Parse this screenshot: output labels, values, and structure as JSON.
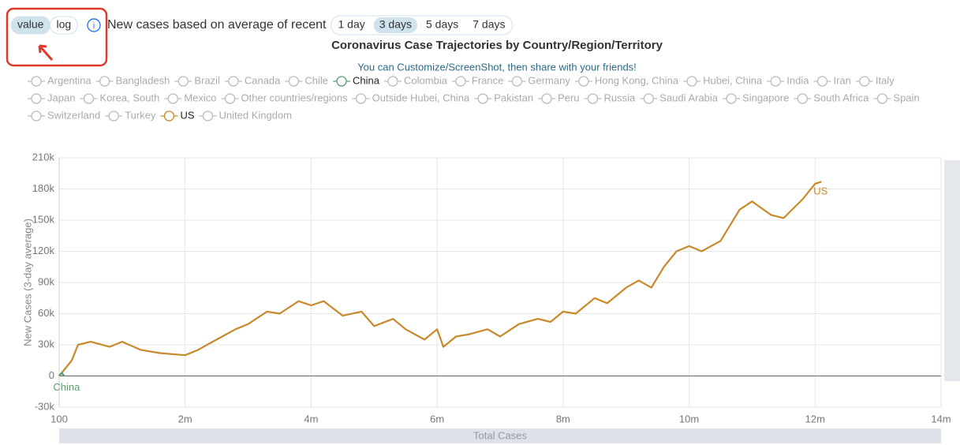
{
  "controls": {
    "scale_options": [
      "value",
      "log"
    ],
    "scale_selected": 0,
    "average_label": "New cases based on average of recent",
    "average_options": [
      "1 day",
      "3 days",
      "5 days",
      "7 days"
    ],
    "average_selected": 1
  },
  "chart_data": {
    "type": "line",
    "title": "Coronavirus Case Trajectories by Country/Region/Territory",
    "subtitle": "You can Customize/ScreenShot, then share with your friends!",
    "y_label": "New Cases (3-day average)",
    "x_label": "Total Cases",
    "legend": [
      "Argentina",
      "Bangladesh",
      "Brazil",
      "Canada",
      "Chile",
      "China",
      "Colombia",
      "France",
      "Germany",
      "Hong Kong, China",
      "Hubei, China",
      "India",
      "Iran",
      "Italy",
      "Japan",
      "Korea, South",
      "Mexico",
      "Other countries/regions",
      "Outside Hubei, China",
      "Pakistan",
      "Peru",
      "Russia",
      "Saudi Arabia",
      "Singapore",
      "South Africa",
      "Spain",
      "Switzerland",
      "Turkey",
      "US",
      "United Kingdom"
    ],
    "legend_color": "#bbbbbb",
    "series": [
      {
        "name": "US",
        "color": "#c8892b",
        "x": [
          100,
          200000,
          300000,
          500000,
          800000,
          1000000,
          1300000,
          1600000,
          2000000,
          2200000,
          2500000,
          2800000,
          3000000,
          3300000,
          3500000,
          3800000,
          4000000,
          4200000,
          4500000,
          4800000,
          5000000,
          5300000,
          5500000,
          5800000,
          6000000,
          6100000,
          6300000,
          6500000,
          6800000,
          7000000,
          7300000,
          7600000,
          7800000,
          8000000,
          8200000,
          8500000,
          8700000,
          9000000,
          9200000,
          9400000,
          9600000,
          9800000,
          10000000,
          10200000,
          10500000,
          10800000,
          11000000,
          11300000,
          11500000,
          11800000,
          12000000,
          12100000
        ],
        "values": [
          0,
          15000,
          30000,
          33000,
          28000,
          33000,
          25000,
          22000,
          20000,
          25000,
          35000,
          45000,
          50000,
          62000,
          60000,
          72000,
          68000,
          72000,
          58000,
          62000,
          48000,
          55000,
          45000,
          35000,
          45000,
          28000,
          38000,
          40000,
          45000,
          38000,
          50000,
          55000,
          52000,
          62000,
          60000,
          75000,
          70000,
          85000,
          92000,
          85000,
          105000,
          120000,
          125000,
          120000,
          130000,
          160000,
          168000,
          155000,
          152000,
          170000,
          185000,
          187000
        ]
      },
      {
        "name": "China",
        "color": "#5a9e6f",
        "x": [
          100,
          40000,
          80000
        ],
        "values": [
          0,
          3000,
          0
        ]
      }
    ],
    "xlim": [
      100,
      14000000
    ],
    "xticks": [
      100,
      {
        "value": 2000000,
        "label": "2m"
      },
      {
        "value": 4000000,
        "label": "4m"
      },
      {
        "value": 6000000,
        "label": "6m"
      },
      {
        "value": 8000000,
        "label": "8m"
      },
      {
        "value": 10000000,
        "label": "10m"
      },
      {
        "value": 12000000,
        "label": "12m"
      },
      {
        "value": 14000000,
        "label": "14m"
      }
    ],
    "ylim": [
      -30000,
      210000
    ],
    "yticks": [
      {
        "value": -30000,
        "label": "-30k"
      },
      0,
      {
        "value": 30000,
        "label": "30k"
      },
      {
        "value": 60000,
        "label": "60k"
      },
      {
        "value": 90000,
        "label": "90k"
      },
      {
        "value": 120000,
        "label": "120k"
      },
      {
        "value": 150000,
        "label": "150k"
      },
      {
        "value": 180000,
        "label": "180k"
      },
      {
        "value": 210000,
        "label": "210k"
      }
    ],
    "grid": true
  }
}
